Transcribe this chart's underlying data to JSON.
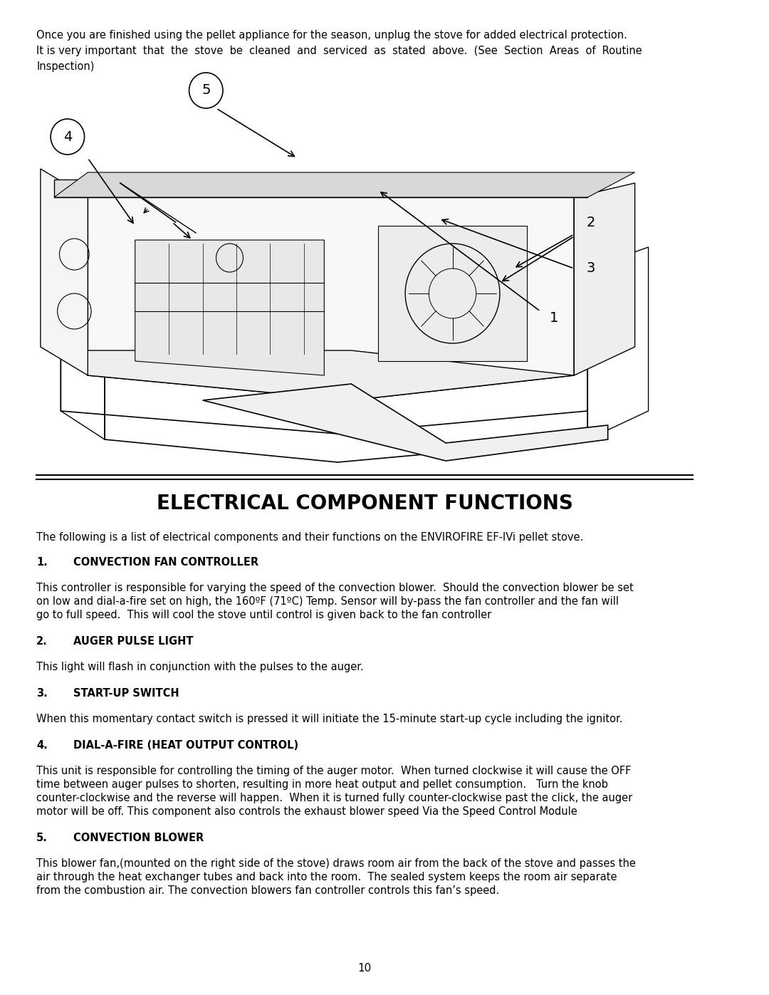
{
  "bg_color": "#ffffff",
  "title": "ELECTRICAL COMPONENT FUNCTIONS",
  "intro_text": "The following is a list of electrical components and their functions on the ENVIROFIRE EF-IVi pellet stove.",
  "top_paragraph": "Once you are finished using the pellet appliance for the season, unplug the stove for added electrical protection.\nIt is very important  that  the  stove  be  cleaned  and  serviced  as  stated  above.  (See  Section  Areas  of  Routine\nInspection)",
  "sections": [
    {
      "number": "1.",
      "heading": "CONVECTION FAN CONTROLLER",
      "body": "This controller is responsible for varying the speed of the convection blower.  Should the convection blower be set\non low and dial-a-fire set on high, the 160ºF (71ºC) Temp. Sensor will by-pass the fan controller and the fan will\ngo to full speed.  This will cool the stove until control is given back to the fan controller"
    },
    {
      "number": "2.",
      "heading": "AUGER PULSE LIGHT",
      "body": "This light will flash in conjunction with the pulses to the auger."
    },
    {
      "number": "3.",
      "heading": "START-UP SWITCH",
      "body": "When this momentary contact switch is pressed it will initiate the 15-minute start-up cycle including the ignitor."
    },
    {
      "number": "4.",
      "heading": "DIAL-A-FIRE (HEAT OUTPUT CONTROL)",
      "body": "This unit is responsible for controlling the timing of the auger motor.  When turned clockwise it will cause the OFF\ntime between auger pulses to shorten, resulting in more heat output and pellet consumption.   Turn the knob\ncounter-clockwise and the reverse will happen.  When it is turned fully counter-clockwise past the click, the auger\nmotor will be off. This component also controls the exhaust blower speed Via the Speed Control Module"
    },
    {
      "number": "5.",
      "heading": "CONVECTION BLOWER",
      "body": "This blower fan,(mounted on the right side of the stove) draws room air from the back of the stove and passes the\nair through the heat exchanger tubes and back into the room.  The sealed system keeps the room air separate\nfrom the combustion air. The convection blowers fan controller controls this fan’s speed."
    }
  ],
  "page_number": "10",
  "font_family": "DejaVu Sans"
}
